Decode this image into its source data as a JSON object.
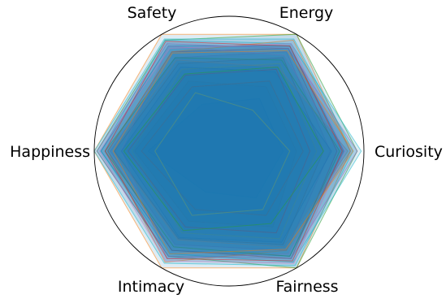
{
  "chart_data": {
    "type": "radar",
    "title": "",
    "axes": [
      "Safety",
      "Energy",
      "Curiosity",
      "Fairness",
      "Intimacy",
      "Happiness"
    ],
    "rlim": [
      0,
      1
    ],
    "grid": false,
    "legend": "none",
    "colors": [
      "#1f77b4",
      "#ff7f0e",
      "#2ca02c",
      "#d62728",
      "#9467bd",
      "#8c564b",
      "#e377c2",
      "#7f7f7f",
      "#bcbd22",
      "#17becf"
    ],
    "series": [
      {
        "values": [
          0.9,
          0.9,
          0.85,
          0.9,
          0.85,
          0.95
        ]
      },
      {
        "values": [
          1.0,
          1.0,
          0.9,
          1.0,
          1.0,
          1.0
        ]
      },
      {
        "values": [
          0.95,
          1.0,
          0.95,
          1.0,
          0.9,
          0.98
        ]
      },
      {
        "values": [
          0.85,
          0.88,
          0.8,
          0.92,
          0.85,
          0.9
        ]
      },
      {
        "values": [
          0.8,
          0.85,
          0.75,
          0.85,
          0.8,
          0.88
        ]
      },
      {
        "values": [
          0.75,
          0.8,
          0.7,
          0.8,
          0.75,
          0.85
        ]
      },
      {
        "values": [
          0.9,
          0.82,
          0.85,
          0.88,
          0.92,
          0.8
        ]
      },
      {
        "values": [
          0.6,
          0.55,
          0.5,
          0.65,
          0.6,
          0.7
        ]
      },
      {
        "values": [
          0.7,
          0.75,
          0.65,
          0.75,
          0.7,
          0.72
        ]
      },
      {
        "values": [
          0.95,
          0.92,
          0.98,
          0.95,
          0.88,
          0.95
        ]
      },
      {
        "values": [
          0.4,
          0.45,
          0.4,
          0.4,
          0.35,
          0.6
        ]
      },
      {
        "values": [
          0.85,
          0.95,
          0.9,
          0.85,
          0.95,
          0.9
        ]
      },
      {
        "values": [
          0.8,
          0.78,
          0.82,
          0.9,
          0.82,
          0.92
        ]
      },
      {
        "values": [
          0.65,
          0.7,
          0.6,
          0.7,
          0.65,
          0.75
        ]
      },
      {
        "values": [
          0.92,
          0.88,
          0.95,
          0.92,
          0.9,
          0.98
        ]
      },
      {
        "values": [
          0.55,
          0.6,
          0.55,
          0.55,
          0.5,
          0.65
        ]
      },
      {
        "values": [
          0.88,
          0.92,
          0.86,
          0.96,
          0.94,
          0.96
        ]
      },
      {
        "values": [
          0.78,
          0.72,
          0.88,
          0.82,
          0.76,
          0.86
        ]
      },
      {
        "values": [
          0.5,
          0.35,
          0.45,
          0.5,
          0.55,
          0.55
        ]
      },
      {
        "values": [
          0.96,
          0.96,
          0.92,
          0.98,
          0.96,
          1.0
        ]
      },
      {
        "values": [
          0.72,
          0.68,
          0.76,
          0.78,
          0.74,
          0.8
        ]
      },
      {
        "values": [
          0.84,
          0.86,
          0.92,
          0.84,
          0.88,
          0.86
        ]
      },
      {
        "values": [
          0.66,
          0.72,
          0.7,
          0.62,
          0.68,
          0.78
        ]
      },
      {
        "values": [
          0.94,
          0.9,
          0.84,
          0.94,
          0.92,
          0.92
        ]
      }
    ]
  }
}
